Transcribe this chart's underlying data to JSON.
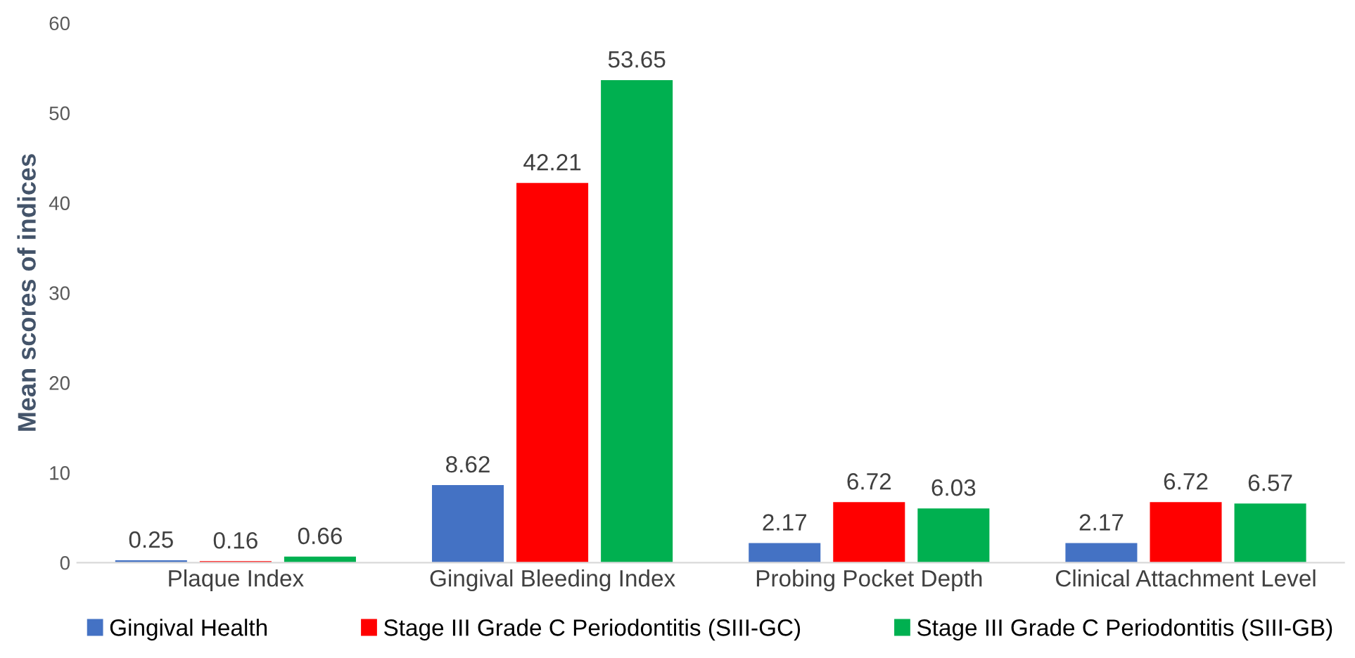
{
  "chart_data": {
    "type": "bar",
    "ylabel": "Mean scores of indices",
    "categories": [
      "Plaque Index",
      "Gingival Bleeding Index",
      "Probing Pocket Depth",
      "Clinical Attachment Level"
    ],
    "series": [
      {
        "name": "Gingival Health",
        "color": "#4472c4",
        "values": [
          0.25,
          8.62,
          2.17,
          2.17
        ]
      },
      {
        "name": "Stage III Grade C Periodontitis (SIII-GC)",
        "color": "#ff0000",
        "values": [
          0.16,
          42.21,
          6.72,
          6.72
        ]
      },
      {
        "name": "Stage III Grade C Periodontitis (SIII-GB)",
        "color": "#00b050",
        "values": [
          0.66,
          53.65,
          6.03,
          6.57
        ]
      }
    ],
    "ylim": [
      0,
      60
    ],
    "yticks": [
      0,
      10,
      20,
      30,
      40,
      50,
      60
    ],
    "grid": false,
    "legend": "bottom",
    "data_labels": true
  }
}
